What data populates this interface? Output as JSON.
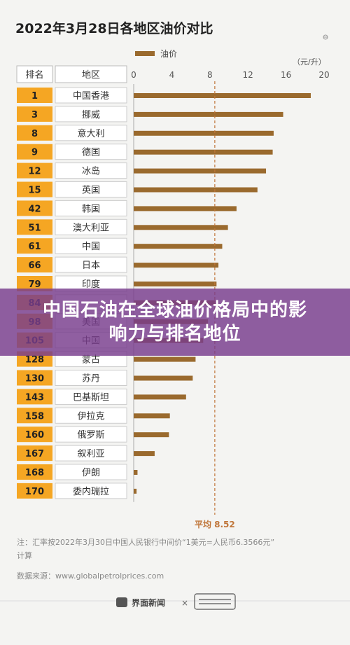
{
  "chart_data": {
    "type": "bar",
    "title": "2022年3月28日各地区油价对比",
    "legend_label": "油价",
    "unit_label": "（元/升）",
    "col_rank": "排名",
    "col_region": "地区",
    "xlim": [
      0,
      20
    ],
    "xticks": [
      "0",
      "4",
      "8",
      "12",
      "16",
      "20"
    ],
    "average_label": "平均 8.52",
    "average_value": 8.52,
    "ranks": [
      "1",
      "3",
      "8",
      "9",
      "12",
      "15",
      "42",
      "51",
      "61",
      "66",
      "79",
      "84",
      "98",
      "105",
      "128",
      "130",
      "143",
      "158",
      "160",
      "167",
      "168",
      "170"
    ],
    "categories": [
      "中国香港",
      "挪威",
      "意大利",
      "德国",
      "冰岛",
      "英国",
      "韩国",
      "澳大利亚",
      "中国",
      "日本",
      "印度",
      "",
      "美国",
      "中国",
      "蒙古",
      "苏丹",
      "巴基斯坦",
      "伊拉克",
      "俄罗斯",
      "叙利亚",
      "伊朗",
      "委内瑞拉"
    ],
    "values": [
      18.6,
      15.7,
      14.7,
      14.6,
      13.9,
      13.0,
      10.8,
      9.9,
      9.3,
      8.9,
      8.7,
      8.6,
      7.8,
      7.3,
      6.5,
      6.2,
      5.5,
      3.8,
      3.7,
      2.2,
      0.4,
      0.3
    ],
    "note_line1": "注：汇率按2022年3月30日中国人民银行中间价“1美元=人民币6.3566元”",
    "note_line2": "计算",
    "source": "数据来源：www.globalpetrolprices.com",
    "footer_brand": "界面新闻",
    "footer_times": "×",
    "colors": {
      "bar": "#9a6a2e",
      "rank_bg": "#f5a623",
      "avg_line": "#c0763a",
      "banner": "#7a3c8c"
    }
  },
  "banner": {
    "text": "中国石油在全球油价格局中的影响力与排名地位"
  }
}
